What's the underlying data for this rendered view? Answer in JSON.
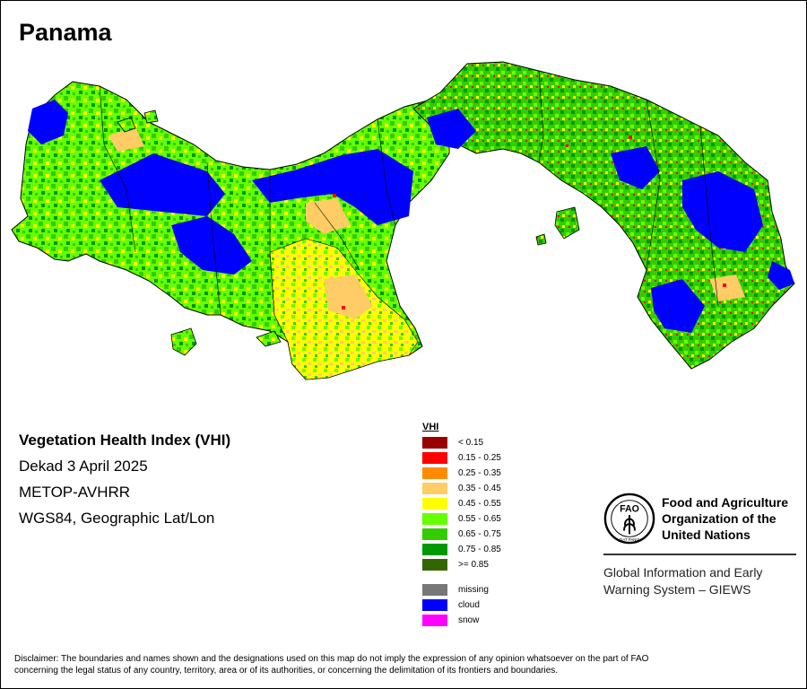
{
  "map": {
    "title": "Panama"
  },
  "info": {
    "product": "Vegetation Health Index (VHI)",
    "period": "Dekad 3 April 2025",
    "sensor": "METOP-AVHRR",
    "projection": "WGS84, Geographic Lat/Lon"
  },
  "legend": {
    "title": "VHI",
    "classes": [
      {
        "label": "< 0.15",
        "color": "#990000"
      },
      {
        "label": "0.15 - 0.25",
        "color": "#ff0000"
      },
      {
        "label": "0.25 - 0.35",
        "color": "#ff8c00"
      },
      {
        "label": "0.35 - 0.45",
        "color": "#ffcc66"
      },
      {
        "label": "0.45 - 0.55",
        "color": "#ffff00"
      },
      {
        "label": "0.55 - 0.65",
        "color": "#66ff00"
      },
      {
        "label": "0.65 - 0.75",
        "color": "#33cc00"
      },
      {
        "label": "0.75 - 0.85",
        "color": "#009900"
      },
      {
        "label": ">= 0.85",
        "color": "#336600"
      }
    ],
    "other": [
      {
        "label": "missing",
        "color": "#777777"
      },
      {
        "label": "cloud",
        "color": "#0000ff"
      },
      {
        "label": "snow",
        "color": "#ff00ff"
      }
    ]
  },
  "org": {
    "name_line1": "Food and Agriculture",
    "name_line2": "Organization of the",
    "name_line3": "United Nations",
    "logo_text": "FAO",
    "logo_motto": "FIAT PANIS",
    "system_line1": "Global Information and Early",
    "system_line2": "Warning System – GIEWS"
  },
  "disclaimer": {
    "line1": "Disclaimer: The boundaries and names shown and the designations used on this map do not imply the expression of any opinion whatsoever on the part of FAO",
    "line2": "concerning the legal status of any country, territory, area or of its authorities, or concerning the delimitation of its frontiers and boundaries."
  }
}
